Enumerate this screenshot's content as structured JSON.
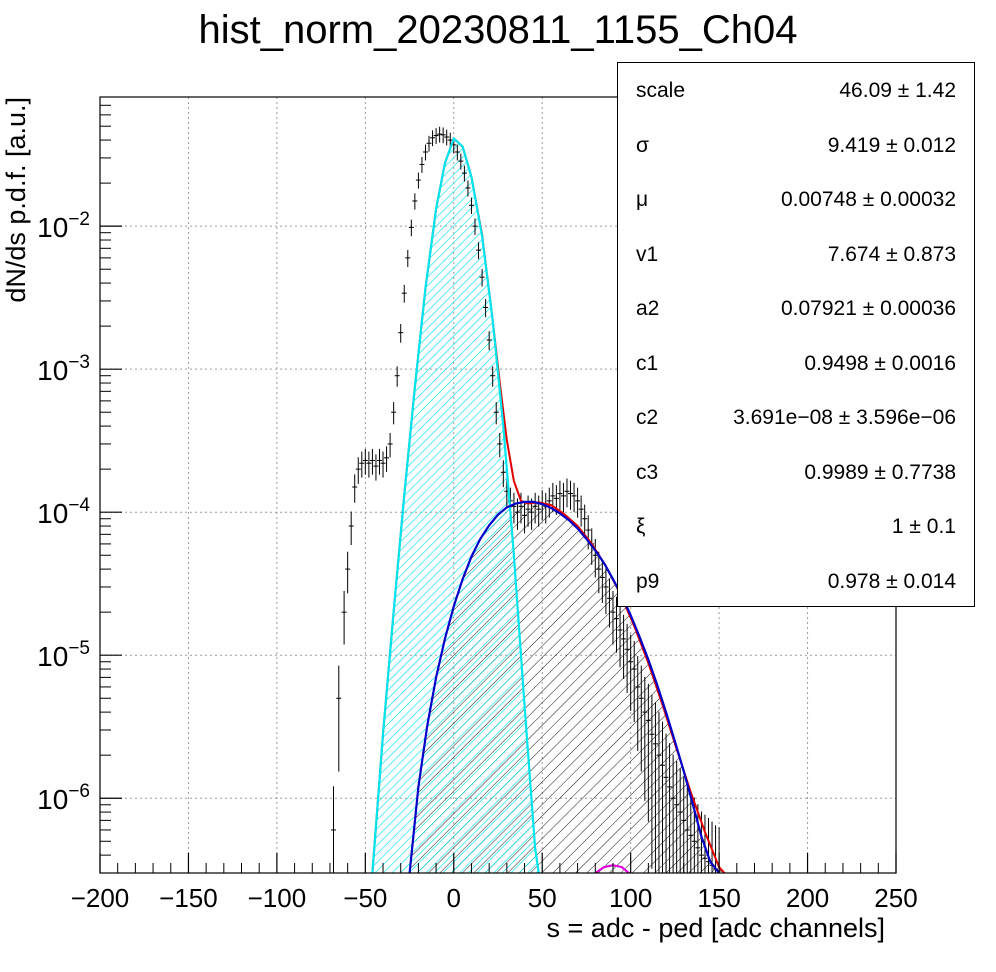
{
  "title": "hist_norm_20230811_1155_Ch04",
  "colors": {
    "data": "#000000",
    "total_fit": "#e00000",
    "gaussian": "#00e5ee",
    "tail": "#0000c8",
    "extra": "#e000e0",
    "grid": "#9a9a9a"
  },
  "stats_box": {
    "rows": [
      {
        "label": "scale",
        "value": "46.09 ± 1.42"
      },
      {
        "label": "σ",
        "value": "9.419 ± 0.012"
      },
      {
        "label": "μ",
        "value": "0.00748 ± 0.00032"
      },
      {
        "label": "v1",
        "value": "7.674 ± 0.873"
      },
      {
        "label": "a2",
        "value": "0.07921 ± 0.00036"
      },
      {
        "label": "c1",
        "value": "0.9498 ± 0.0016"
      },
      {
        "label": "c2",
        "value": "3.691e−08 ± 3.596e−06"
      },
      {
        "label": "c3",
        "value": "0.9989 ± 0.7738"
      },
      {
        "label": "ξ",
        "value": "1 ± 0.1"
      },
      {
        "label": "p9",
        "value": "0.978 ± 0.014"
      }
    ]
  },
  "chart_data": {
    "type": "line",
    "title": "hist_norm_20230811_1155_Ch04",
    "xlabel": "s = adc - ped [adc channels]",
    "ylabel": "dN/ds p.d.f. [a.u.]",
    "xlim": [
      -200,
      250
    ],
    "ylim": [
      3e-07,
      0.08
    ],
    "yscale": "log",
    "grid": true,
    "xticks": [
      "−200",
      "−150",
      "−100",
      "−50",
      "0",
      "50",
      "100",
      "150",
      "200",
      "250"
    ],
    "yticks": [
      {
        "base": "10",
        "exp": "−6",
        "value": 1e-06
      },
      {
        "base": "10",
        "exp": "−5",
        "value": 1e-05
      },
      {
        "base": "10",
        "exp": "−4",
        "value": 0.0001
      },
      {
        "base": "10",
        "exp": "−3",
        "value": 0.001
      },
      {
        "base": "10",
        "exp": "−2",
        "value": 0.01
      }
    ],
    "series": [
      {
        "role": "data",
        "x": [
          -68,
          -65,
          -62,
          -60,
          -58,
          -56,
          -54,
          -52,
          -50,
          -48,
          -46,
          -44,
          -42,
          -40,
          -38,
          -36,
          -34,
          -32,
          -30,
          -28,
          -26,
          -24,
          -22,
          -20,
          -18,
          -16,
          -14,
          -12,
          -10,
          -8,
          -6,
          -4,
          -2,
          0,
          2,
          4,
          6,
          8,
          10,
          12,
          14,
          16,
          18,
          20,
          22,
          24,
          26,
          28,
          30,
          32,
          34,
          36,
          38,
          40,
          42,
          44,
          46,
          48,
          50,
          52,
          54,
          56,
          58,
          60,
          62,
          64,
          66,
          68,
          70,
          72,
          74,
          76,
          78,
          80,
          82,
          84,
          86,
          88,
          90,
          92,
          94,
          96,
          98,
          100,
          102,
          104,
          106,
          108,
          110,
          112,
          114,
          116,
          118,
          120,
          122,
          124,
          126,
          128,
          130,
          132,
          134,
          136,
          138,
          140,
          142,
          144,
          146,
          148,
          150
        ],
        "y": [
          6e-07,
          5e-06,
          2e-05,
          4e-05,
          8e-05,
          0.00015,
          0.0002,
          0.00022,
          0.00023,
          0.00022,
          0.00023,
          0.00021,
          0.00023,
          0.00022,
          0.00024,
          0.0003,
          0.0005,
          0.0009,
          0.0018,
          0.0034,
          0.006,
          0.0098,
          0.015,
          0.021,
          0.027,
          0.033,
          0.038,
          0.0415,
          0.043,
          0.044,
          0.0435,
          0.042,
          0.04,
          0.037,
          0.033,
          0.0285,
          0.0235,
          0.0185,
          0.014,
          0.01,
          0.0068,
          0.0044,
          0.0027,
          0.0016,
          0.0009,
          0.0005,
          0.0003,
          0.00019,
          0.00014,
          0.00012,
          0.00011,
          0.0001,
          0.00011,
          9.5e-05,
          0.000105,
          0.0001,
          0.00011,
          0.000105,
          0.000115,
          0.00011,
          0.00012,
          0.00013,
          0.000125,
          0.000135,
          0.00013,
          0.00014,
          0.000135,
          0.00013,
          0.00012,
          0.000105,
          9e-05,
          7.5e-05,
          6e-05,
          5e-05,
          4e-05,
          3.5e-05,
          3e-05,
          2.5e-05,
          2e-05,
          1.8e-05,
          1.5e-05,
          1.3e-05,
          1.1e-05,
          9e-06,
          8e-06,
          6e-06,
          5e-06,
          4e-06,
          3.5e-06,
          2.8e-06,
          2.4e-06,
          2e-06,
          1.7e-06,
          1.4e-06,
          1.2e-06,
          1e-06,
          9e-07,
          8e-07,
          7e-07,
          6e-07,
          5.5e-07,
          5e-07,
          4.5e-07,
          4e-07,
          3.8e-07,
          3.6e-07,
          3.4e-07,
          3.2e-07,
          3.1e-07
        ]
      },
      {
        "role": "total_fit",
        "x": [
          -46,
          -40,
          -34,
          -28,
          -22,
          -16,
          -10,
          -5,
          0,
          5,
          10,
          16,
          22,
          26,
          30,
          34,
          38,
          42,
          48,
          55,
          62,
          70,
          78,
          86,
          94,
          102,
          110,
          118,
          126,
          134,
          142,
          150,
          153
        ],
        "y": [
          3e-07,
          2.8e-06,
          2e-05,
          0.00013,
          0.00075,
          0.0037,
          0.0132,
          0.0275,
          0.041,
          0.036,
          0.022,
          0.0087,
          0.0022,
          0.0008,
          0.00032,
          0.000165,
          0.00012,
          0.000115,
          0.000117,
          0.000112,
          9.8e-05,
          8e-05,
          6e-05,
          4.2e-05,
          2.7e-05,
          1.6e-05,
          8.8e-06,
          4.5e-06,
          2.2e-06,
          1.1e-06,
          5.8e-07,
          3.3e-07,
          3e-07
        ]
      },
      {
        "role": "gaussian",
        "x": [
          -46,
          -40,
          -34,
          -28,
          -22,
          -16,
          -10,
          -5,
          0,
          5,
          10,
          16,
          22,
          28,
          34,
          40,
          46,
          48
        ],
        "y": [
          3e-07,
          2.8e-06,
          2e-05,
          0.00013,
          0.00075,
          0.0037,
          0.0132,
          0.0275,
          0.041,
          0.036,
          0.022,
          0.0085,
          0.0022,
          0.0004,
          5e-05,
          4.5e-06,
          4.5e-07,
          3e-07
        ]
      },
      {
        "role": "tail",
        "x": [
          -25,
          -20,
          -15,
          -10,
          -5,
          0,
          5,
          10,
          15,
          20,
          25,
          30,
          35,
          40,
          45,
          50,
          55,
          60,
          65,
          70,
          75,
          80,
          85,
          90,
          95,
          100,
          105,
          110,
          115,
          120,
          125,
          130,
          135,
          140,
          145,
          150
        ],
        "y": [
          3e-07,
          1.2e-06,
          3.2e-06,
          7e-06,
          1.3e-05,
          2.2e-05,
          3.4e-05,
          4.9e-05,
          6.5e-05,
          8.1e-05,
          9.6e-05,
          0.000108,
          0.000115,
          0.000118,
          0.000118,
          0.000114,
          0.000107,
          9.8e-05,
          8.8e-05,
          7.7e-05,
          6.5e-05,
          5.4e-05,
          4.4e-05,
          3.4e-05,
          2.6e-05,
          1.9e-05,
          1.35e-05,
          9.3e-06,
          6.2e-06,
          4e-06,
          2.5e-06,
          1.55e-06,
          9.2e-07,
          5.4e-07,
          3.6e-07,
          3e-07
        ]
      },
      {
        "role": "extra",
        "x": [
          80,
          85,
          90,
          95,
          99
        ],
        "y": [
          3e-07,
          3.3e-07,
          3.4e-07,
          3.3e-07,
          3e-07
        ]
      }
    ]
  }
}
